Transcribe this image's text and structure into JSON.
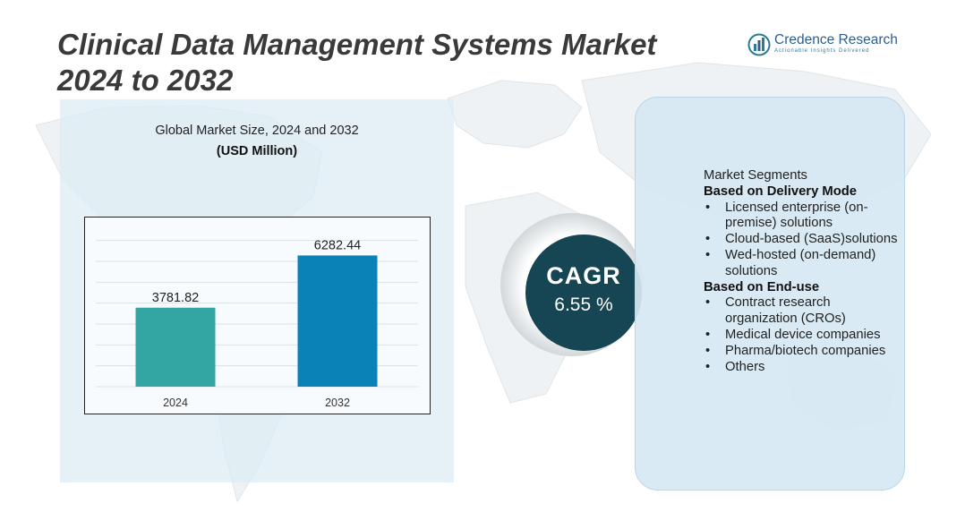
{
  "title": {
    "line1": "Clinical Data Management Systems Market",
    "line2": "2024 to 2032"
  },
  "logo": {
    "name": "Credence Research",
    "tagline": "Actionable Insights Delivered"
  },
  "colors": {
    "title": "#3a3a3a",
    "bar_2024": "#33a5a3",
    "bar_2032": "#0a82b7",
    "cagr_circle": "#164553",
    "panel_bg": "#dcebf4"
  },
  "chart_data": {
    "type": "bar",
    "title": "Global Market Size, 2024 and 2032",
    "unit": "(USD Million)",
    "categories": [
      "2024",
      "2032"
    ],
    "values": [
      3781.82,
      6282.44
    ],
    "data_labels": [
      "3781.82",
      "6282.44"
    ],
    "ylim": [
      0,
      7500
    ],
    "grid": true,
    "legend": "none"
  },
  "cagr": {
    "label": "CAGR",
    "value": "6.55 %"
  },
  "segments": {
    "title": "Market Segments",
    "groups": [
      {
        "heading": "Based on Delivery Mode",
        "items": [
          "Licensed enterprise (on-premise) solutions",
          "Cloud-based (SaaS)solutions",
          "Wed-hosted (on-demand) solutions"
        ]
      },
      {
        "heading": "Based on End-use",
        "items": [
          "Contract research organization (CROs)",
          "Medical device companies",
          "Pharma/biotech companies",
          "Others"
        ]
      }
    ]
  }
}
